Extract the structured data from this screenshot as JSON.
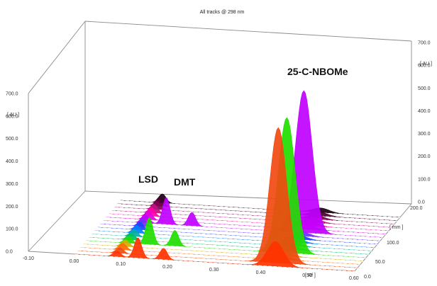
{
  "chart_data": {
    "type": "area",
    "title": "All tracks @ 298 nm",
    "left_axis": {
      "label": "[ AU ]",
      "range": [
        0,
        700
      ],
      "ticks": [
        "0.0",
        "100.0",
        "200.0",
        "300.0",
        "400.0",
        "500.0",
        "600.0",
        "700.0"
      ]
    },
    "right_axis": {
      "label": "[ AU ]",
      "range": [
        0,
        700
      ],
      "ticks": [
        "0.0",
        "100.0",
        "200.0",
        "300.0",
        "400.0",
        "500.0",
        "600.0",
        "700.0"
      ]
    },
    "x_axis": {
      "label": "[ Rf ]",
      "range": [
        -0.1,
        0.6
      ],
      "ticks": [
        "-0.10",
        "0.00",
        "0.10",
        "0.20",
        "0.30",
        "0.40",
        "0.50",
        "0.60"
      ]
    },
    "depth_axis": {
      "label": "[ mm ]",
      "range": [
        0,
        200
      ],
      "ticks": [
        "0.0",
        "50.0",
        "100.0",
        "200.0"
      ]
    },
    "annotations": [
      {
        "text": "LSD",
        "x": 0.13,
        "y": 300
      },
      {
        "text": "DMT",
        "x": 0.2,
        "y": 300
      },
      {
        "text": "25-C-NBOMe",
        "x": 0.43,
        "y": 700
      }
    ],
    "tracks": [
      {
        "color": "#ff3300",
        "z": 0.0,
        "peaks": [
          [
            0.09,
            25
          ],
          [
            0.135,
            90
          ],
          [
            0.19,
            50
          ],
          [
            0.43,
            110
          ]
        ]
      },
      {
        "color": "#f04a10",
        "z": 0.05,
        "peaks": [
          [
            0.09,
            25
          ],
          [
            0.43,
            600
          ]
        ]
      },
      {
        "color": "#ff6a00",
        "z": 0.1,
        "peaks": [
          [
            0.09,
            30
          ],
          [
            0.43,
            20
          ]
        ]
      },
      {
        "color": "#d4b000",
        "z": 0.15,
        "peaks": [
          [
            0.09,
            30
          ],
          [
            0.43,
            20
          ]
        ]
      },
      {
        "color": "#22dd00",
        "z": 0.2,
        "peaks": [
          [
            0.09,
            30
          ],
          [
            0.135,
            120
          ],
          [
            0.19,
            70
          ],
          [
            0.43,
            600
          ]
        ]
      },
      {
        "color": "#00c060",
        "z": 0.25,
        "peaks": [
          [
            0.09,
            30
          ],
          [
            0.43,
            20
          ]
        ]
      },
      {
        "color": "#00b0a0",
        "z": 0.3,
        "peaks": [
          [
            0.09,
            30
          ],
          [
            0.43,
            20
          ]
        ]
      },
      {
        "color": "#0080ff",
        "z": 0.35,
        "peaks": [
          [
            0.09,
            35
          ],
          [
            0.43,
            20
          ]
        ]
      },
      {
        "color": "#2040ff",
        "z": 0.4,
        "peaks": [
          [
            0.09,
            35
          ],
          [
            0.43,
            20
          ]
        ]
      },
      {
        "color": "#7030ff",
        "z": 0.45,
        "peaks": [
          [
            0.09,
            35
          ],
          [
            0.43,
            20
          ]
        ]
      },
      {
        "color": "#c000ff",
        "z": 0.5,
        "peaks": [
          [
            0.09,
            40
          ],
          [
            0.135,
            120
          ],
          [
            0.19,
            60
          ],
          [
            0.43,
            630
          ]
        ]
      },
      {
        "color": "#e000e0",
        "z": 0.55,
        "peaks": [
          [
            0.09,
            40
          ],
          [
            0.43,
            20
          ]
        ]
      },
      {
        "color": "#ff00aa",
        "z": 0.6,
        "peaks": [
          [
            0.09,
            40
          ],
          [
            0.43,
            20
          ]
        ]
      },
      {
        "color": "#c01080",
        "z": 0.65,
        "peaks": [
          [
            0.09,
            40
          ],
          [
            0.43,
            20
          ]
        ]
      },
      {
        "color": "#800050",
        "z": 0.7,
        "peaks": [
          [
            0.09,
            40
          ],
          [
            0.43,
            20
          ]
        ]
      },
      {
        "color": "#4a0030",
        "z": 0.75,
        "peaks": [
          [
            0.09,
            40
          ],
          [
            0.43,
            20
          ]
        ]
      },
      {
        "color": "#1a0010",
        "z": 0.8,
        "peaks": [
          [
            0.09,
            40
          ],
          [
            0.43,
            20
          ]
        ]
      }
    ]
  }
}
